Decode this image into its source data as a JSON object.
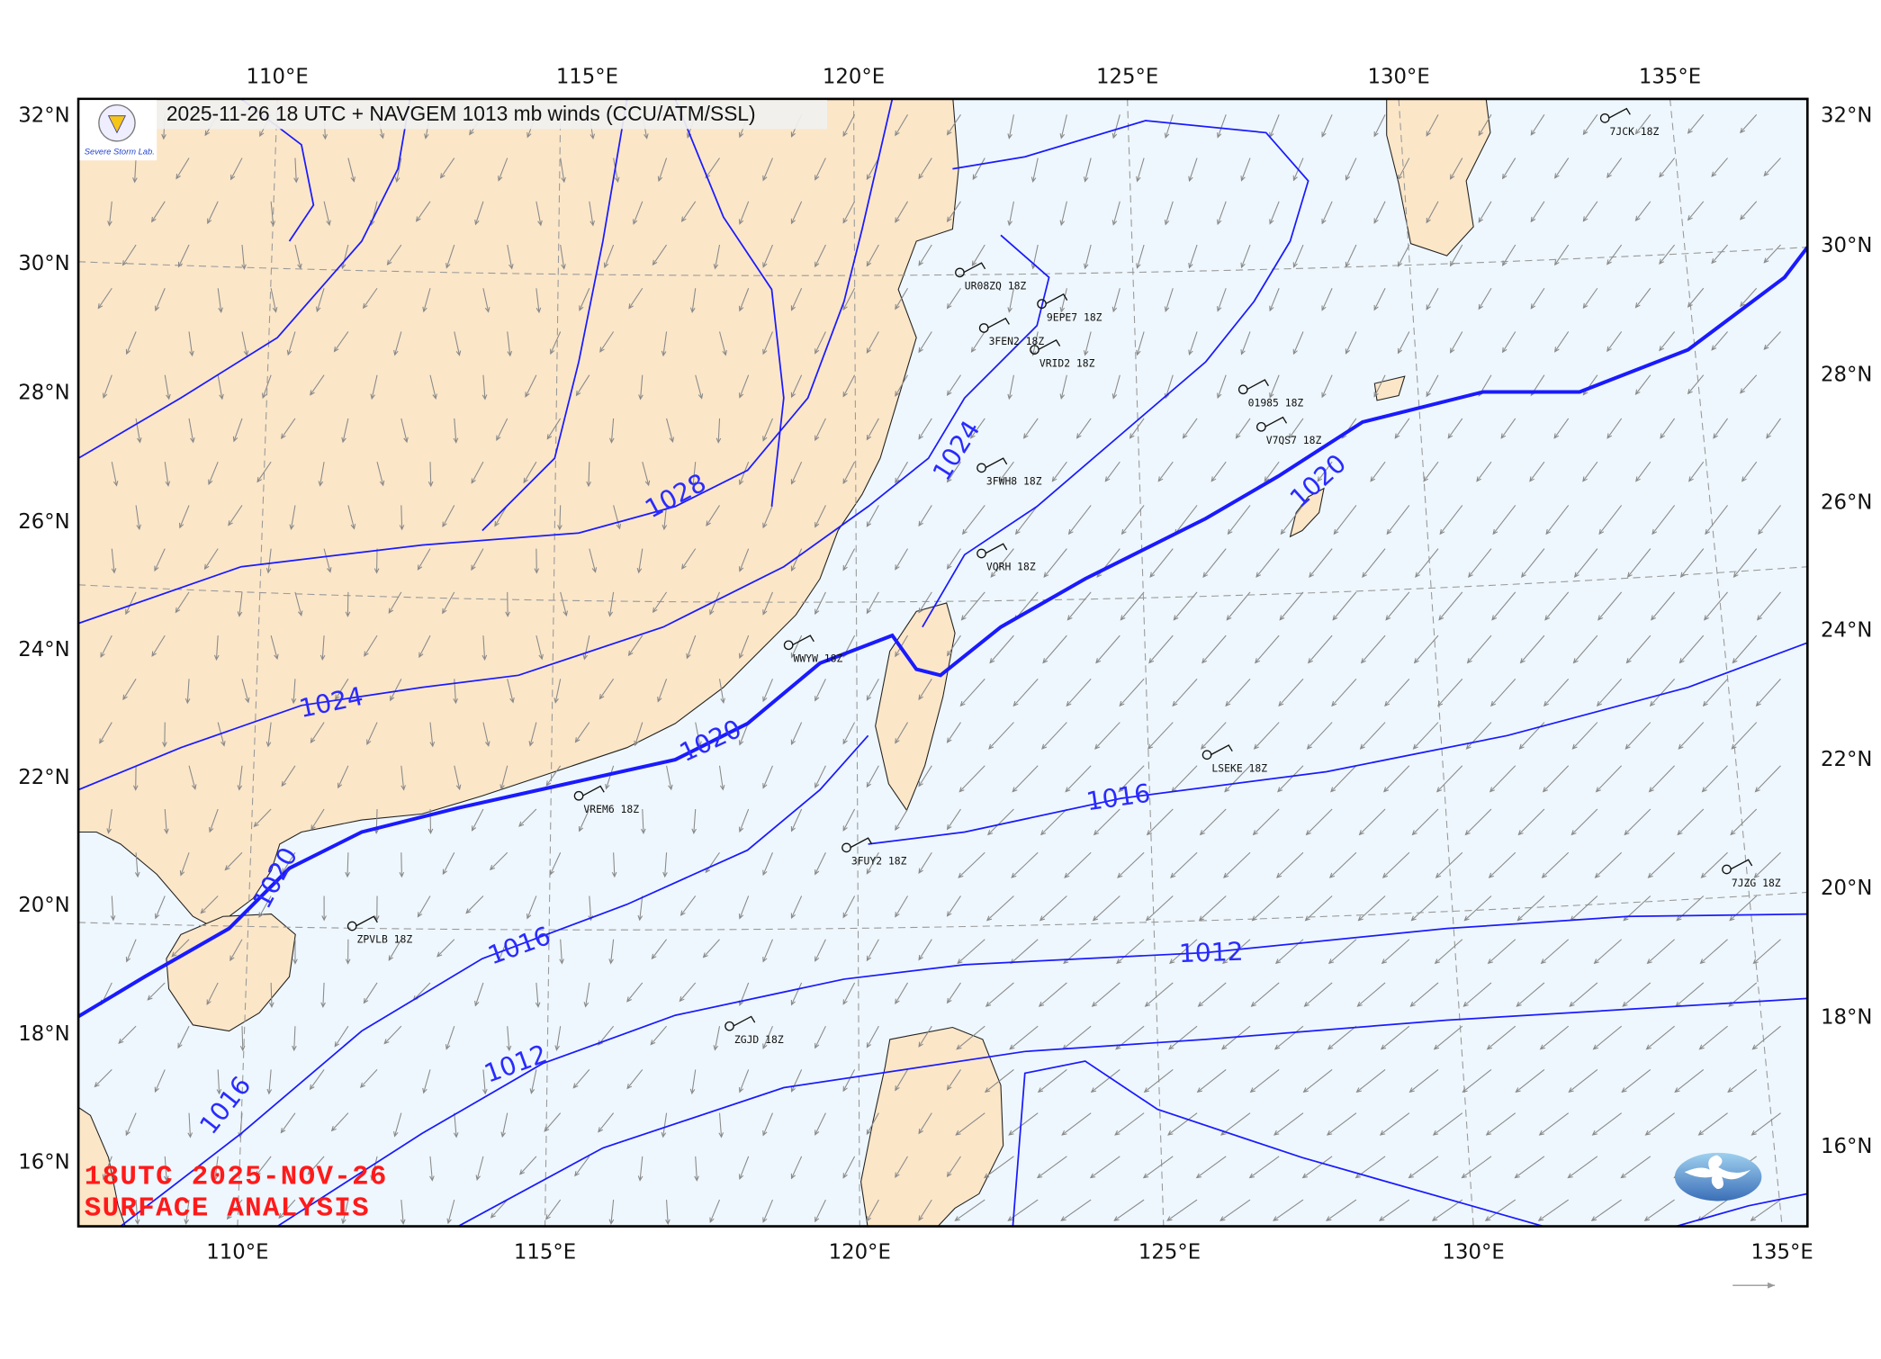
{
  "map": {
    "title": "2025-11-26 18 UTC + NAVGEM 1013 mb winds (CCU/ATM/SSL)",
    "stamp_line1": "18UTC  2025-NOV-26",
    "stamp_line2": "SURFACE ANALYSIS",
    "logo_text": "Severe Storm Lab.",
    "lon_labels_top": [
      "110°E",
      "115°E",
      "120°E",
      "125°E",
      "130°E",
      "135°E"
    ],
    "lon_labels_bottom": [
      "110°E",
      "115°E",
      "120°E",
      "125°E",
      "130°E",
      "135°E"
    ],
    "lat_labels_left": [
      "32°N",
      "30°N",
      "28°N",
      "26°N",
      "24°N",
      "22°N",
      "20°N",
      "18°N",
      "16°N"
    ],
    "lat_labels_right": [
      "32°N",
      "30°N",
      "28°N",
      "26°N",
      "24°N",
      "22°N",
      "20°N",
      "18°N",
      "16°N"
    ],
    "isobar_labels": [
      "1028",
      "1024",
      "1024",
      "1020",
      "1020",
      "1020",
      "1016",
      "1016",
      "1016",
      "1012",
      "1012"
    ],
    "stations": [
      "9EPE7 18Z",
      "VRID2 18Z",
      "3FEN2 18Z",
      "01985 18Z",
      "V7QS7 18Z",
      "VQRH 18Z",
      "LSEKE 18Z",
      "VREM6 18Z",
      "ZPVLB 18Z",
      "3FUY2 18Z",
      "ZGJD 18Z",
      "WWYW 18Z",
      "7JCK 18Z",
      "7JZG 18Z",
      "3FWH8 18Z",
      "UR08ZQ 18Z"
    ],
    "colors": {
      "land": "#fbe6c8",
      "ocean": "#eef7fd",
      "isobar": "#1a1aff",
      "wind_vector": "#8a8a8a",
      "stamp": "#ff1a1a"
    }
  }
}
